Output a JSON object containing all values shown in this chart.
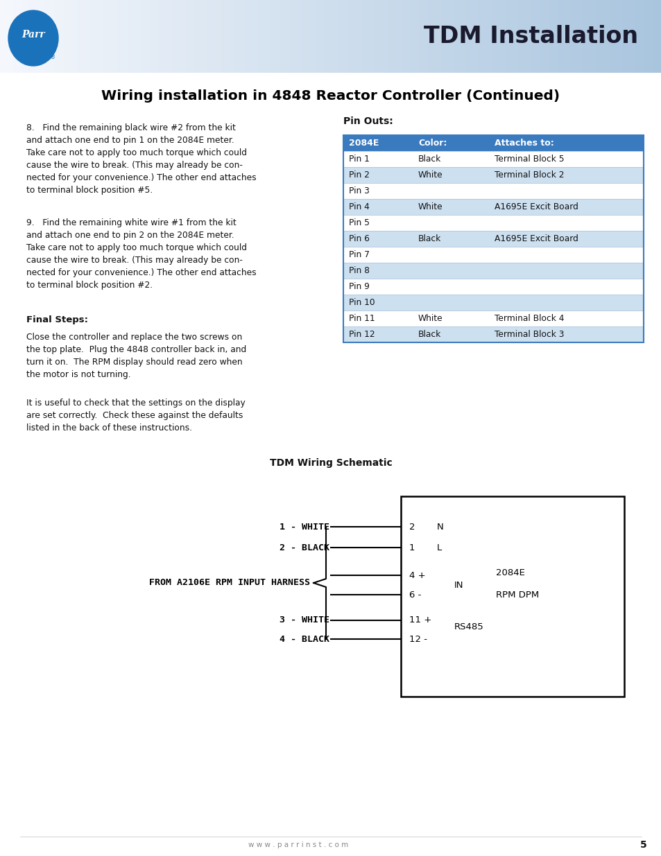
{
  "page_bg": "#ffffff",
  "header_title": "TDM Installation",
  "page_title": "Wiring installation in 4848 Reactor Controller (Continued)",
  "pin_outs_title": "Pin Outs:",
  "table_header_bg": "#3a7abf",
  "table_header": [
    "2084E",
    "Color:",
    "Attaches to:"
  ],
  "table_rows": [
    [
      "Pin 1",
      "Black",
      "Terminal Block 5"
    ],
    [
      "Pin 2",
      "White",
      "Terminal Block 2"
    ],
    [
      "Pin 3",
      "",
      ""
    ],
    [
      "Pin 4",
      "White",
      "A1695E Excit Board"
    ],
    [
      "Pin 5",
      "",
      ""
    ],
    [
      "Pin 6",
      "Black",
      "A1695E Excit Board"
    ],
    [
      "Pin 7",
      "",
      ""
    ],
    [
      "Pin 8",
      "",
      ""
    ],
    [
      "Pin 9",
      "",
      ""
    ],
    [
      "Pin 10",
      "",
      ""
    ],
    [
      "Pin 11",
      "White",
      "Terminal Block 4"
    ],
    [
      "Pin 12",
      "Black",
      "Terminal Block 3"
    ]
  ],
  "schematic_title": "TDM Wiring Schematic",
  "footer_text": "w w w . p a r r i n s t . c o m",
  "footer_page": "5",
  "para1": "8.   Find the remaining black wire #2 from the kit\nand attach one end to pin 1 on the 2084E meter.\nTake care not to apply too much torque which could\ncause the wire to break. (This may already be con-\nnected for your convenience.) The other end attaches\nto terminal block position #5.",
  "para2": "9.   Find the remaining white wire #1 from the kit\nand attach one end to pin 2 on the 2084E meter.\nTake care not to apply too much torque which could\ncause the wire to break. (This may already be con-\nnected for your convenience.) The other end attaches\nto terminal block position #2.",
  "final_steps_header": "Final Steps:",
  "para3": "Close the controller and replace the two screws on\nthe top plate.  Plug the 4848 controller back in, and\nturn it on.  The RPM display should read zero when\nthe motor is not turning.",
  "para4": "It is useful to check that the settings on the display\nare set correctly.  Check these against the defaults\nlisted in the back of these instructions."
}
